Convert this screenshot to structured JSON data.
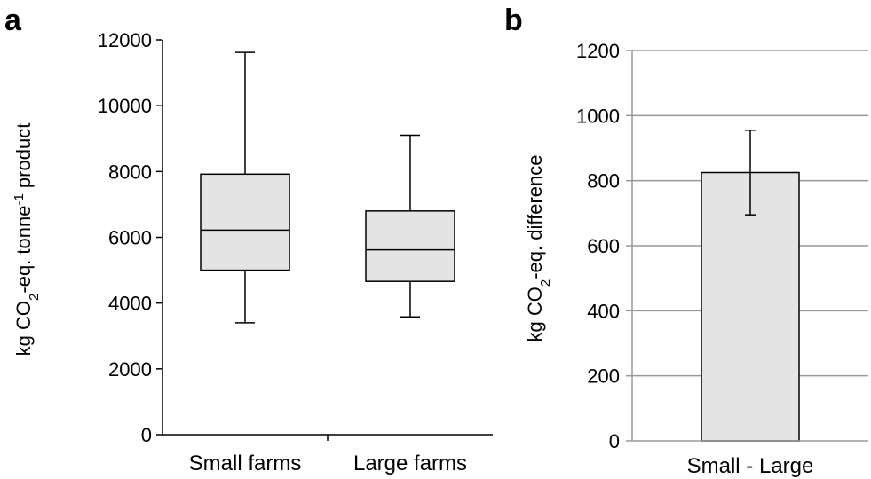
{
  "chart_data": [
    {
      "panel": "a",
      "type": "box",
      "ylabel": {
        "pre": "kg CO",
        "sub": "2",
        "mid": "-eq. tonne",
        "sup": "-1",
        "post": " product"
      },
      "ylim": [
        0,
        12000
      ],
      "yticks": [
        "0",
        "2000",
        "4000",
        "6000",
        "8000",
        "10000",
        "12000"
      ],
      "categories": [
        "Small farms",
        "Large farms"
      ],
      "boxes": [
        {
          "name": "Small farms",
          "min": 3400,
          "q1": 5000,
          "median": 6220,
          "q3": 7920,
          "max": 11620
        },
        {
          "name": "Large farms",
          "min": 3580,
          "q1": 4660,
          "median": 5620,
          "q3": 6800,
          "max": 9100
        }
      ],
      "fill_color": "#e4e4e4",
      "grid": false
    },
    {
      "panel": "b",
      "type": "bar",
      "ylabel": {
        "pre": "kg CO",
        "sub": "2",
        "mid": "-eq. difference",
        "sup": "",
        "post": ""
      },
      "ylim": [
        0,
        1200
      ],
      "yticks": [
        "0",
        "200",
        "400",
        "600",
        "800",
        "1000",
        "1200"
      ],
      "categories": [
        "Small - Large"
      ],
      "values": [
        825
      ],
      "error_low": [
        695
      ],
      "error_high": [
        955
      ],
      "fill_color": "#e4e4e4",
      "grid": true
    }
  ]
}
